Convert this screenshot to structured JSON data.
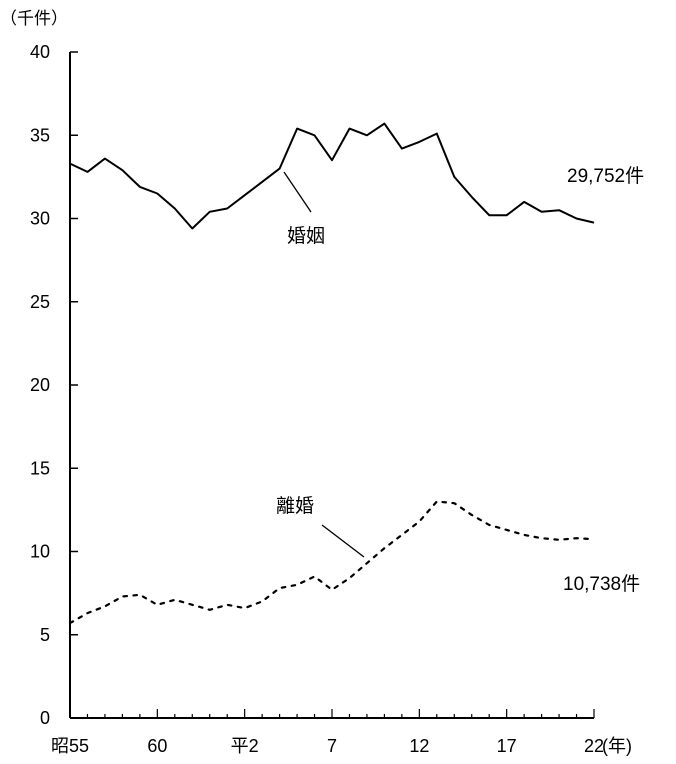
{
  "chart_data": {
    "type": "line",
    "y_unit": "（千件）",
    "x_unit": "(年)",
    "ylim": [
      0,
      40
    ],
    "ytick_values": [
      0,
      5,
      10,
      15,
      20,
      25,
      30,
      35,
      40
    ],
    "ytick_labels": [
      "0",
      "5",
      "10",
      "15",
      "20",
      "25",
      "30",
      "35",
      "40"
    ],
    "x_tick_labels": [
      {
        "label": "昭55",
        "year": 1980
      },
      {
        "label": "60",
        "year": 1985
      },
      {
        "label": "平2",
        "year": 1990
      },
      {
        "label": "7",
        "year": 1995
      },
      {
        "label": "12",
        "year": 2000
      },
      {
        "label": "17",
        "year": 2005
      },
      {
        "label": "22",
        "year": 2010
      }
    ],
    "xlim": [
      1980,
      2010
    ],
    "grid": false,
    "series": [
      {
        "name": "婚姻",
        "style": "solid",
        "color": "#000000",
        "end_label": "29,752件",
        "x": [
          1980,
          1981,
          1982,
          1983,
          1984,
          1985,
          1986,
          1987,
          1988,
          1989,
          1990,
          1991,
          1992,
          1993,
          1994,
          1995,
          1996,
          1997,
          1998,
          1999,
          2000,
          2001,
          2002,
          2003,
          2004,
          2005,
          2006,
          2007,
          2008,
          2009,
          2010
        ],
        "values": [
          33.3,
          32.8,
          33.6,
          32.9,
          31.9,
          31.5,
          30.6,
          29.4,
          30.4,
          30.6,
          31.4,
          32.2,
          33.0,
          35.4,
          35.0,
          33.5,
          35.4,
          35.0,
          35.7,
          34.2,
          34.6,
          35.1,
          32.5,
          31.3,
          30.2,
          30.2,
          31.0,
          30.4,
          30.5,
          30.0,
          29.752
        ]
      },
      {
        "name": "離婚",
        "style": "dotted",
        "color": "#000000",
        "end_label": "10,738件",
        "x": [
          1980,
          1981,
          1982,
          1983,
          1984,
          1985,
          1986,
          1987,
          1988,
          1989,
          1990,
          1991,
          1992,
          1993,
          1994,
          1995,
          1996,
          1997,
          1998,
          1999,
          2000,
          2001,
          2002,
          2003,
          2004,
          2005,
          2006,
          2007,
          2008,
          2009,
          2010
        ],
        "values": [
          5.7,
          6.3,
          6.7,
          7.3,
          7.4,
          6.8,
          7.1,
          6.8,
          6.5,
          6.8,
          6.6,
          7.0,
          7.8,
          8.0,
          8.5,
          7.7,
          8.4,
          9.3,
          10.2,
          11.0,
          11.8,
          13.0,
          12.9,
          12.2,
          11.6,
          11.3,
          11.0,
          10.8,
          10.7,
          10.8,
          10.738
        ]
      }
    ]
  }
}
